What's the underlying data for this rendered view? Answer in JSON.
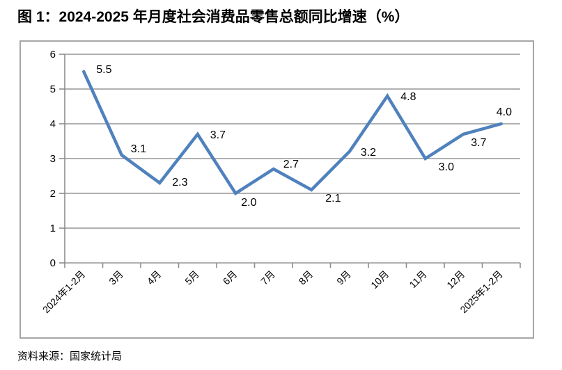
{
  "figure": {
    "title": "图 1：2024-2025 年月度社会消费品零售总额同比增速（%）",
    "source": "资料来源：国家统计局"
  },
  "chart_data": {
    "type": "line",
    "title": "图 1：2024-2025 年月度社会消费品零售总额同比增速（%）",
    "categories": [
      "2024年1-2月",
      "3月",
      "4月",
      "5月",
      "6月",
      "7月",
      "8月",
      "9月",
      "10月",
      "11月",
      "12月",
      "2025年1-2月"
    ],
    "values": [
      5.5,
      3.1,
      2.3,
      3.7,
      2.0,
      2.7,
      2.1,
      3.2,
      4.8,
      3.0,
      3.7,
      4.0
    ],
    "data_labels": [
      "5.5",
      "3.1",
      "2.3",
      "3.7",
      "2.0",
      "2.7",
      "2.1",
      "3.2",
      "4.8",
      "3.0",
      "3.7",
      "4.0"
    ],
    "xlabel": "",
    "ylabel": "",
    "ylim": [
      0,
      6
    ],
    "yticks": [
      0,
      1,
      2,
      3,
      4,
      5,
      6
    ],
    "grid": true,
    "legend": "none",
    "colors": {
      "line": "#4F81BD",
      "grid": "#969696",
      "axis": "#8c8c8c",
      "frame_border": "#A6A6A6",
      "text": "#000000",
      "background": "#FFFFFF"
    }
  }
}
